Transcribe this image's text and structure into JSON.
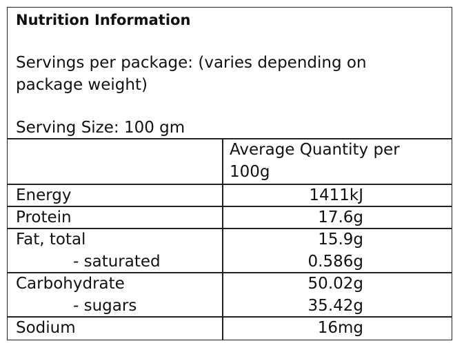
{
  "header": {
    "title": "Nutrition Information",
    "servings": "Servings per package: (varies depending on package weight)",
    "serving_size": "Serving Size: 100 gm"
  },
  "table": {
    "column_header": "Average Quantity per 100g",
    "groups": [
      [
        [
          "Energy",
          "1411kJ"
        ]
      ],
      [
        [
          "Protein",
          "17.6g"
        ]
      ],
      [
        [
          "Fat, total",
          "15.9g"
        ],
        [
          "- saturated",
          "0.586g"
        ]
      ],
      [
        [
          "Carbohydrate",
          "50.02g"
        ],
        [
          "- sugars",
          "35.42g"
        ]
      ],
      [
        [
          "Sodium",
          "16mg"
        ]
      ]
    ]
  }
}
